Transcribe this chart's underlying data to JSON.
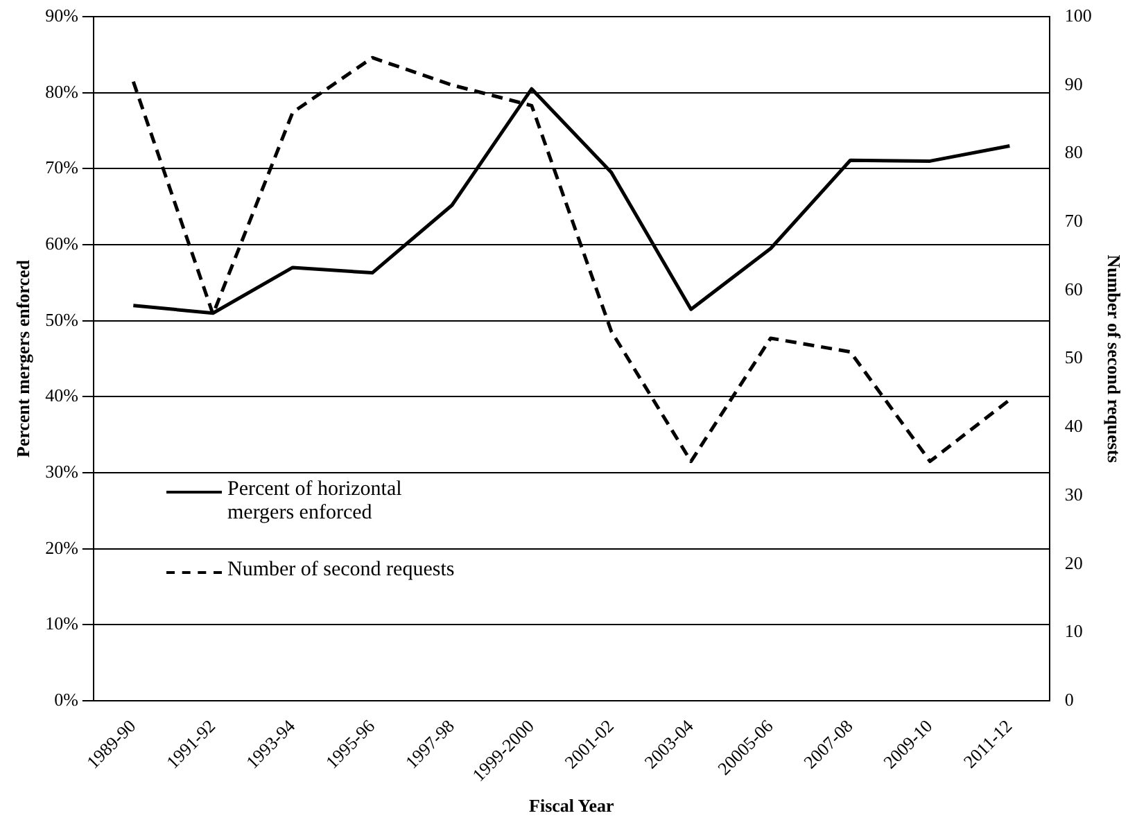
{
  "chart_data": {
    "type": "line",
    "xlabel": "Fiscal Year",
    "ylabel": "Percent mergers enforced",
    "y2label": "Number of second requests",
    "categories": [
      "1989-90",
      "1991-92",
      "1993-94",
      "1995-96",
      "1997-98",
      "1999-2000",
      "2001-02",
      "2003-04",
      "20005-06",
      "2007-08",
      "2009-10",
      "2011-12"
    ],
    "series": [
      {
        "name": "Percent of horizontal mergers enforced",
        "color": "#000000",
        "line_style": "solid",
        "values": [
          52,
          51,
          57,
          56.3,
          65.2,
          80.5,
          69.5,
          51.5,
          59.5,
          71.1,
          71,
          73
        ]
      },
      {
        "name": "Number of second requests",
        "color": "#000000",
        "line_style": "dashed",
        "axis": "y2",
        "values": [
          90.5,
          56.5,
          86,
          94,
          90,
          87,
          54,
          35,
          53,
          51,
          35,
          44
        ]
      }
    ],
    "ylim": [
      0,
      90
    ],
    "yticks": [
      {
        "value": 0,
        "label": "0%"
      },
      {
        "value": 10,
        "label": "10%"
      },
      {
        "value": 20,
        "label": "20%"
      },
      {
        "value": 30,
        "label": "30%"
      },
      {
        "value": 40,
        "label": "40%"
      },
      {
        "value": 50,
        "label": "50%"
      },
      {
        "value": 60,
        "label": "60%"
      },
      {
        "value": 70,
        "label": "70%"
      },
      {
        "value": 80,
        "label": "80%"
      },
      {
        "value": 90,
        "label": "90%"
      }
    ],
    "y2lim": [
      0,
      100
    ],
    "y2ticks": [
      0,
      10,
      20,
      30,
      40,
      50,
      60,
      70,
      80,
      90,
      100
    ],
    "grid": "y",
    "legend": "left",
    "marker": "none"
  }
}
